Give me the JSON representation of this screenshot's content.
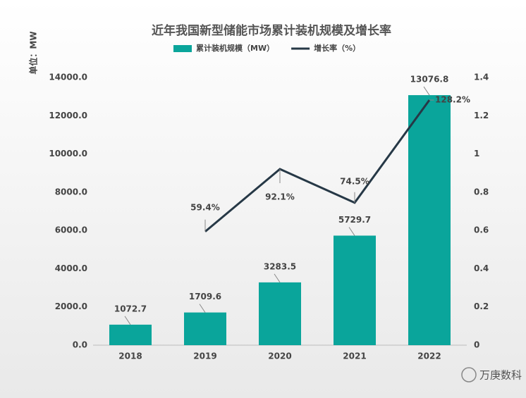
{
  "chart_data": {
    "type": "bar",
    "title": "近年我国新型储能市场累计装机规模及增长率",
    "y_label": "单位：MW",
    "categories": [
      "2018",
      "2019",
      "2020",
      "2021",
      "2022"
    ],
    "series": [
      {
        "name": "累计装机规模（MW）",
        "color": "#0aa59b",
        "type": "bar",
        "values": [
          1072.7,
          1709.6,
          3283.5,
          5729.7,
          13076.8
        ]
      },
      {
        "name": "增长率（%）",
        "color": "#263846",
        "type": "line",
        "axis": "y2",
        "values": [
          null,
          0.594,
          0.921,
          0.745,
          1.282
        ],
        "value_labels": [
          null,
          "59.4%",
          "92.1%",
          "74.5%",
          "128.2%"
        ]
      }
    ],
    "ylim": [
      0,
      14000
    ],
    "yticks": [
      {
        "value": 0,
        "label": "0.0"
      },
      {
        "value": 2000,
        "label": "2000.0"
      },
      {
        "value": 4000,
        "label": "4000.0"
      },
      {
        "value": 6000,
        "label": "6000.0"
      },
      {
        "value": 8000,
        "label": "8000.0"
      },
      {
        "value": 10000,
        "label": "10000.0"
      },
      {
        "value": 12000,
        "label": "12000.0"
      },
      {
        "value": 14000,
        "label": "14000.0"
      }
    ],
    "y2lim": [
      0,
      1.4
    ],
    "y2ticks": [
      0,
      0.2,
      0.4,
      0.6,
      0.8,
      1,
      1.2,
      1.4
    ],
    "legend": "top",
    "watermark": "万庚数科"
  }
}
